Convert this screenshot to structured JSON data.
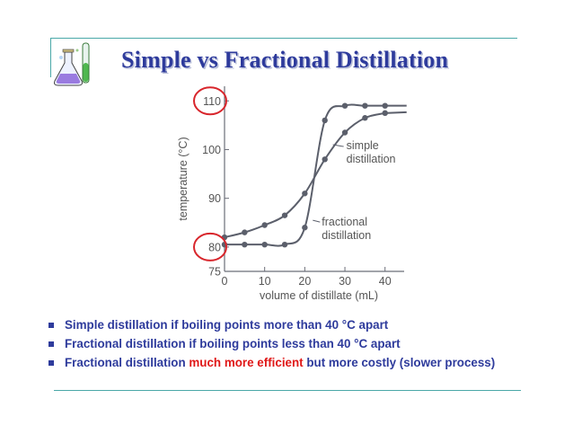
{
  "slide": {
    "title": "Simple vs Fractional Distillation"
  },
  "chart_data": {
    "type": "line",
    "xlabel": "volume of distillate (mL)",
    "ylabel": "temperature (°C)",
    "xlim": [
      0,
      47
    ],
    "ylim": [
      75,
      113
    ],
    "x_ticks": [
      "0",
      "10",
      "20",
      "30",
      "40"
    ],
    "y_ticks": [
      "75",
      "80",
      "90",
      "100",
      "110"
    ],
    "grid": false,
    "series": [
      {
        "name": "simple distillation",
        "label_line1": "simple",
        "label_line2": "distillation",
        "x": [
          0,
          5,
          10,
          15,
          20,
          25,
          30,
          35,
          40
        ],
        "y": [
          82,
          83,
          84.5,
          86.5,
          91,
          98,
          103.5,
          106.5,
          107.5
        ]
      },
      {
        "name": "fractional distillation",
        "label_line1": "fractional",
        "label_line2": "distillation",
        "x": [
          0,
          5,
          10,
          15,
          20,
          25,
          30,
          35,
          40
        ],
        "y": [
          80.5,
          80.5,
          80.5,
          80.5,
          84,
          106,
          109,
          109,
          109
        ]
      }
    ],
    "annotations": [
      {
        "type": "circle",
        "target_tick": "110",
        "color": "#d8262c"
      },
      {
        "type": "circle",
        "target_tick": "80",
        "color": "#d8262c"
      }
    ]
  },
  "bullets": [
    {
      "text": "Simple distillation if boiling points more than 40 °C apart"
    },
    {
      "text": "Fractional distillation if boiling points less than 40 °C apart"
    },
    {
      "text_before": "Fractional distillation ",
      "highlight": "much more efficient",
      "text_after": " but more costly (slower process)",
      "highlight_color": "#e01818"
    }
  ],
  "colors": {
    "title": "#2e3b9c",
    "frame": "#4aa8a8",
    "curve": "#5b5f6b",
    "axis": "#6b6e78",
    "circle": "#d8262c"
  }
}
